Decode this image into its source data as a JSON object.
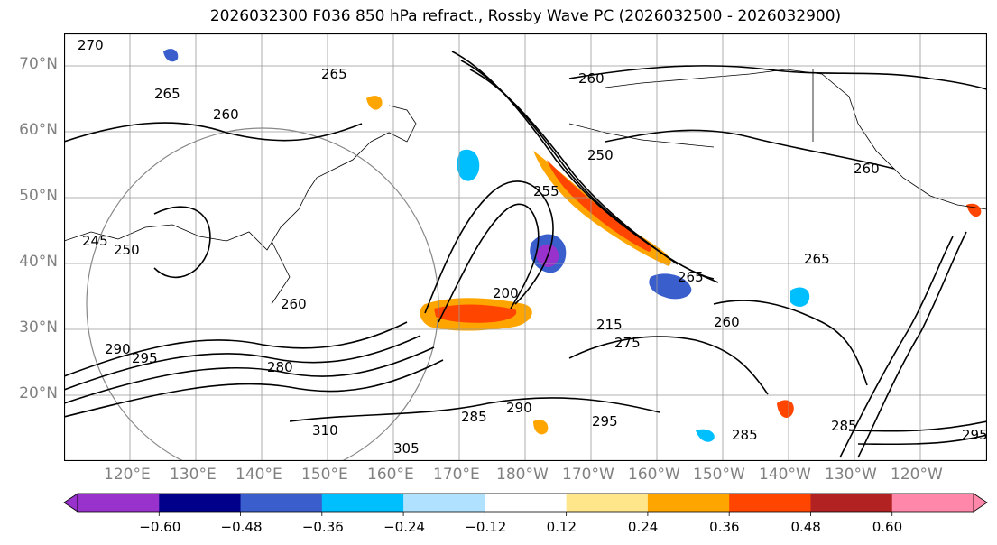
{
  "title": "2026032300 F036 850 hPa refract., Rossby Wave PC (2026032500 - 2026032900)",
  "latitude_labels": [
    "70°N",
    "60°N",
    "50°N",
    "40°N",
    "30°N",
    "20°N"
  ],
  "longitude_labels": [
    "120°E",
    "130°E",
    "140°E",
    "150°E",
    "160°E",
    "170°E",
    "180°W",
    "170°W",
    "160°W",
    "150°W",
    "140°W",
    "130°W",
    "120°W"
  ],
  "contour_labels": [
    "270",
    "265",
    "260",
    "265",
    "260",
    "250",
    "260",
    "255",
    "265",
    "245",
    "250",
    "260",
    "200",
    "215",
    "275",
    "290",
    "295",
    "280",
    "310",
    "305",
    "285",
    "290",
    "295",
    "285",
    "265",
    "260",
    "285",
    "295"
  ],
  "colorbar": {
    "ticks": [
      "−0.60",
      "−0.48",
      "−0.36",
      "−0.24",
      "−0.12",
      "0.12",
      "0.24",
      "0.36",
      "0.48",
      "0.60"
    ],
    "colors": [
      "#9932cc",
      "#00008b",
      "#3a5fcd",
      "#00bfff",
      "#b0e2ff",
      "#ffffff",
      "#ffe68a",
      "#ffa500",
      "#ff4500",
      "#b22222",
      "#ff88aa"
    ]
  },
  "colors": {
    "coastline": "#000000",
    "grid": "#999999",
    "neg_strong": "#9932cc",
    "neg_mid": "#3a5fcd",
    "neg_weak": "#00bfff",
    "pos_weak": "#ffa500",
    "pos_mid": "#ff4500",
    "pos_strong": "#b22222"
  }
}
